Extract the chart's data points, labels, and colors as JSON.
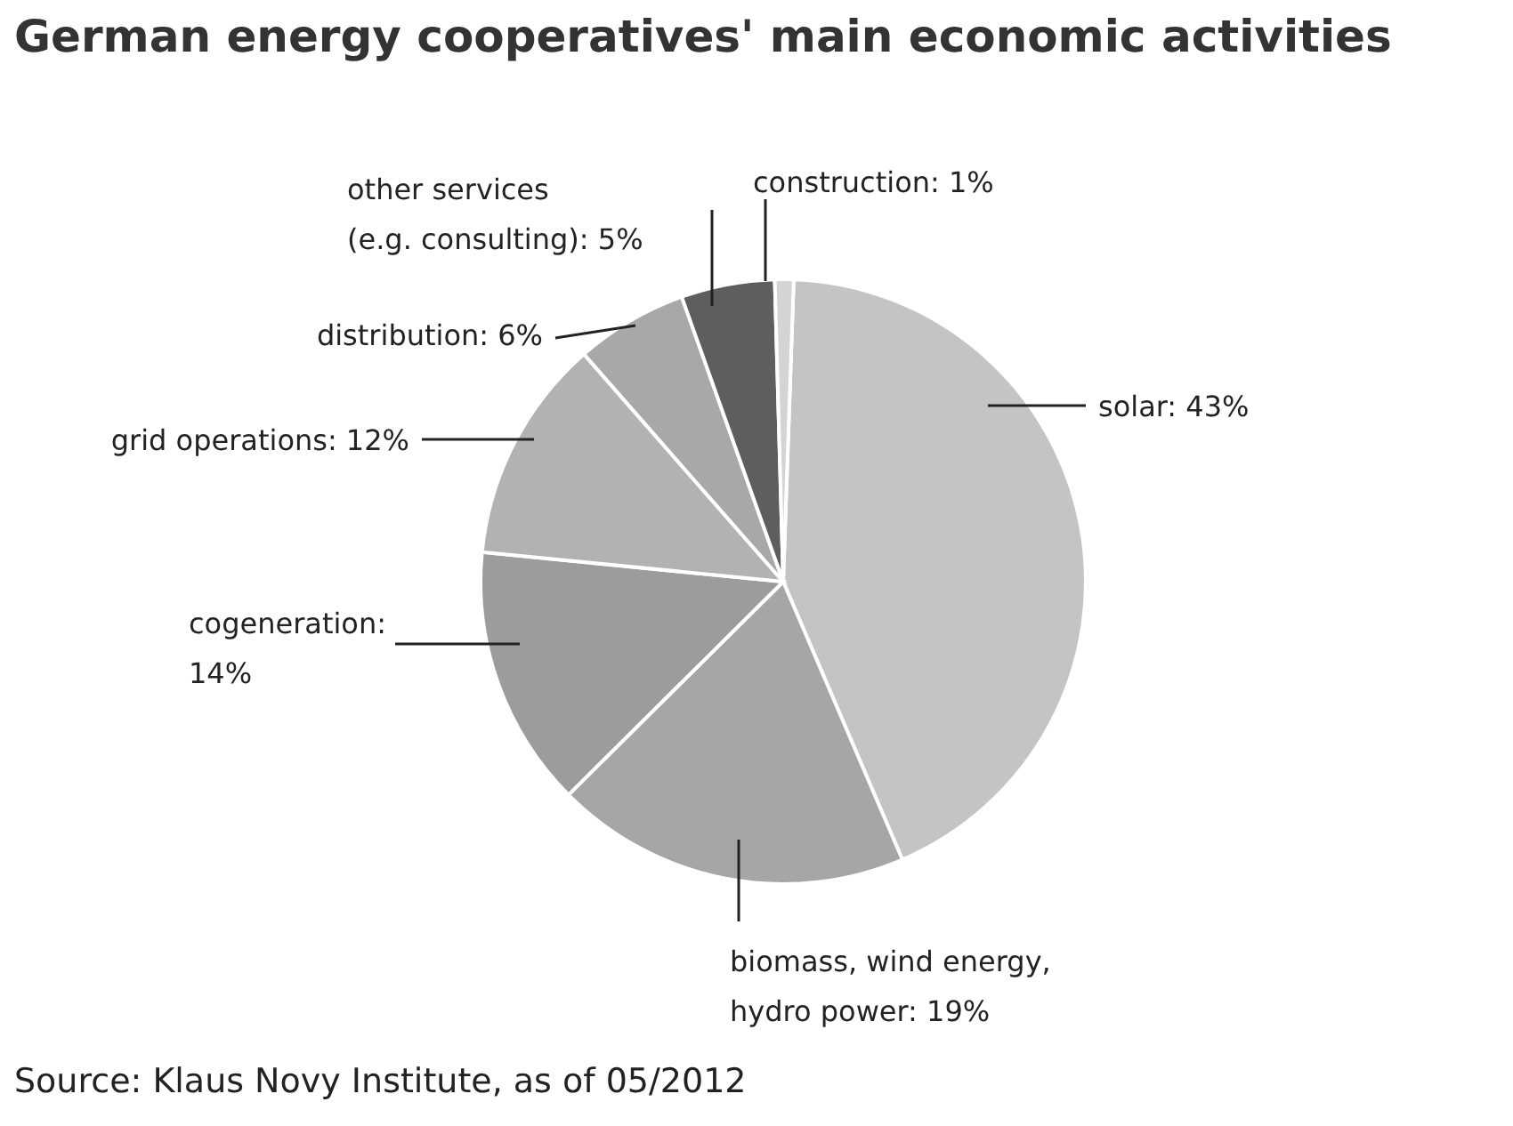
{
  "chart_data": {
    "type": "pie",
    "title": "German energy cooperatives' main economic activities",
    "categories": [
      "solar: 43%",
      "biomass, wind energy, hydro power: 19%",
      "cogeneration: 14%",
      "grid operations: 12%",
      "distribution: 6%",
      "other services (e.g. consulting): 5%",
      "construction: 1%"
    ],
    "values": [
      43,
      19,
      14,
      12,
      6,
      5,
      1
    ],
    "colors": [
      "#c4c4c4",
      "#a6a6a6",
      "#9c9c9c",
      "#b2b2b2",
      "#a8a8a8",
      "#5e5e5e",
      "#d4d4d4"
    ],
    "legend": false,
    "annotations": [
      "Source: Klaus Novy Institute, as of 05/2012"
    ]
  }
}
